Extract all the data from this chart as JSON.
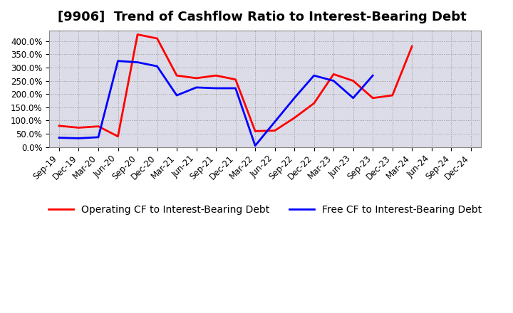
{
  "title": "[9906]  Trend of Cashflow Ratio to Interest-Bearing Debt",
  "x_labels": [
    "Sep-19",
    "Dec-19",
    "Mar-20",
    "Jun-20",
    "Sep-20",
    "Dec-20",
    "Mar-21",
    "Jun-21",
    "Sep-21",
    "Dec-21",
    "Mar-22",
    "Jun-22",
    "Sep-22",
    "Dec-22",
    "Mar-23",
    "Jun-23",
    "Sep-23",
    "Dec-23",
    "Mar-24",
    "Jun-24",
    "Sep-24",
    "Dec-24"
  ],
  "operating_cf": [
    80.0,
    73.0,
    78.0,
    40.0,
    425.0,
    410.0,
    270.0,
    260.0,
    270.0,
    255.0,
    60.0,
    62.0,
    110.0,
    165.0,
    275.0,
    250.0,
    185.0,
    195.0,
    380.0,
    null,
    null,
    null
  ],
  "free_cf": [
    35.0,
    33.0,
    37.0,
    325.0,
    320.0,
    305.0,
    195.0,
    225.0,
    222.0,
    222.0,
    5.0,
    95.0,
    185.0,
    270.0,
    250.0,
    185.0,
    270.0,
    null,
    null,
    null,
    null,
    null
  ],
  "operating_color": "#ff0000",
  "free_color": "#0000ff",
  "background_color": "#ffffff",
  "plot_bg_color": "#dcdce8",
  "ylim": [
    0,
    440
  ],
  "yticks": [
    0,
    50,
    100,
    150,
    200,
    250,
    300,
    350,
    400
  ],
  "legend_labels": [
    "Operating CF to Interest-Bearing Debt",
    "Free CF to Interest-Bearing Debt"
  ],
  "title_fontsize": 13,
  "tick_fontsize": 8.5,
  "legend_fontsize": 10,
  "linewidth": 2.0
}
